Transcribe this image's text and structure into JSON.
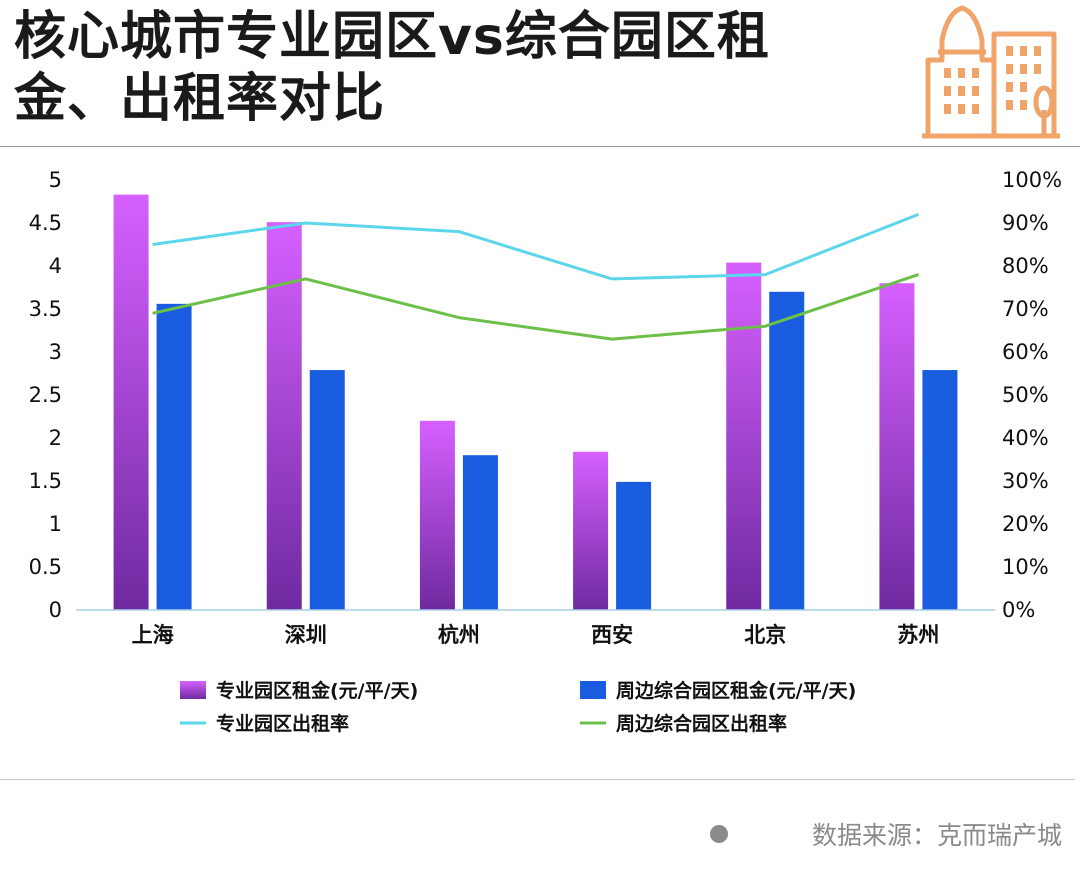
{
  "title_lines": [
    "核心城市专业园区vs综合园区租",
    "金、出租率对比"
  ],
  "source": "数据来源：克而瑞产城",
  "colors": {
    "specialized_rent_top": "#d660ff",
    "specialized_rent_bottom": "#6f2aa0",
    "general_rent": "#1a5ce0",
    "specialized_rate": "#5cd6ea",
    "general_rate": "#6cc04a",
    "icon": "#f0a46a"
  },
  "chart_data": {
    "type": "bar",
    "categories": [
      "上海",
      "深圳",
      "杭州",
      "西安",
      "北京",
      "苏州"
    ],
    "y_left": {
      "ylim": [
        0,
        5
      ],
      "ticks": [
        "0",
        "0.5",
        "1",
        "1.5",
        "2",
        "2.5",
        "3",
        "3.5",
        "4",
        "4.5",
        "5"
      ]
    },
    "y_right": {
      "ylim": [
        0,
        100
      ],
      "ticks": [
        "0%",
        "10%",
        "20%",
        "30%",
        "40%",
        "50%",
        "60%",
        "70%",
        "80%",
        "90%",
        "100%"
      ]
    },
    "series": [
      {
        "name": "专业园区租金(元/平/天)",
        "type": "bar",
        "axis": "left",
        "values": [
          4.83,
          4.51,
          2.2,
          1.84,
          4.04,
          3.8
        ]
      },
      {
        "name": "周边综合园区租金(元/平/天)",
        "type": "bar",
        "axis": "left",
        "values": [
          3.56,
          2.79,
          1.8,
          1.49,
          3.7,
          2.79
        ]
      },
      {
        "name": "专业园区出租率",
        "type": "line",
        "axis": "right",
        "values": [
          85,
          90,
          88,
          77,
          78,
          92
        ]
      },
      {
        "name": "周边综合园区出租率",
        "type": "line",
        "axis": "right",
        "values": [
          69,
          77,
          68,
          63,
          66,
          78
        ]
      }
    ],
    "grid": false,
    "legend_position": "bottom"
  }
}
